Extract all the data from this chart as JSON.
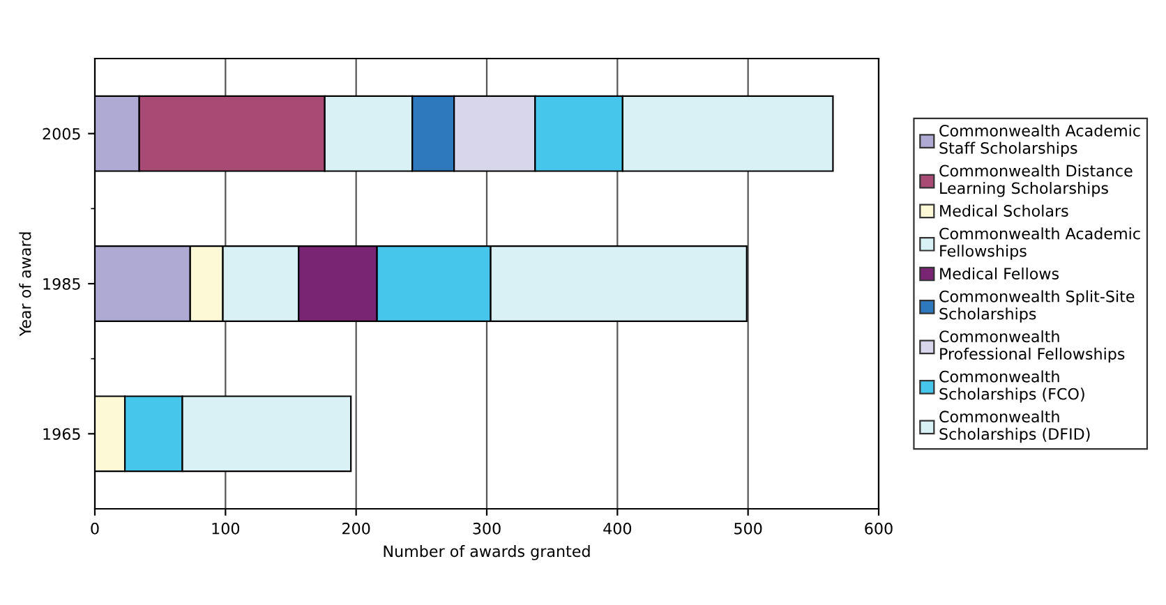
{
  "chart_data": {
    "type": "bar",
    "orientation": "horizontal",
    "stacked": true,
    "categories": [
      "2005",
      "1985",
      "1965"
    ],
    "xlabel": "Number of awards granted",
    "ylabel": "Year of award",
    "xlim": [
      0,
      600
    ],
    "xticks": [
      0,
      100,
      200,
      300,
      400,
      500,
      600
    ],
    "grid": "x",
    "legend": "right",
    "series": [
      {
        "name": "Commonwealth Academic Staff Scholarships",
        "color": "#aeaad4",
        "values": [
          34,
          73,
          null
        ]
      },
      {
        "name": "Commonwealth Distance Learning Scholarships",
        "color": "#a84a74",
        "values": [
          142,
          null,
          null
        ]
      },
      {
        "name": "Medical Scholars",
        "color": "#fdf8d6",
        "values": [
          null,
          25,
          23
        ]
      },
      {
        "name": "Commonwealth Academic Fellowships",
        "color": "#d9f0f4",
        "values": [
          67,
          58,
          null
        ]
      },
      {
        "name": "Medical Fellows",
        "color": "#792574",
        "values": [
          null,
          60,
          null
        ]
      },
      {
        "name": "Commonwealth Split-Site Scholarships",
        "color": "#2e78bd",
        "values": [
          32,
          null,
          null
        ]
      },
      {
        "name": "Commonwealth Professional Fellowships",
        "color": "#d8d6ea",
        "values": [
          62,
          null,
          null
        ]
      },
      {
        "name": "Commonwealth Scholarships (FCO)",
        "color": "#47c6ec",
        "values": [
          67,
          87,
          44
        ]
      },
      {
        "name": "Commonwealth Scholarships (DFID)",
        "color": "#d9f0f4",
        "values": [
          161,
          196,
          129
        ]
      }
    ]
  }
}
